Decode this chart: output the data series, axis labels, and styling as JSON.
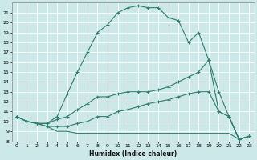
{
  "xlabel": "Humidex (Indice chaleur)",
  "bg_color": "#cce8e8",
  "grid_color": "#b8d8d8",
  "line_color": "#2e7d6e",
  "xlim": [
    -0.5,
    23.5
  ],
  "ylim": [
    8,
    22
  ],
  "xticks": [
    0,
    1,
    2,
    3,
    4,
    5,
    6,
    7,
    8,
    9,
    10,
    11,
    12,
    13,
    14,
    15,
    16,
    17,
    18,
    19,
    20,
    21,
    22,
    23
  ],
  "yticks": [
    8,
    9,
    10,
    11,
    12,
    13,
    14,
    15,
    16,
    17,
    18,
    19,
    20,
    21
  ],
  "curve1_x": [
    0,
    1,
    2,
    3,
    4,
    5,
    6,
    7,
    8,
    9,
    10,
    11,
    12,
    13,
    14,
    15,
    16,
    17,
    18,
    19,
    20,
    21,
    22,
    23
  ],
  "curve1_y": [
    10.5,
    10.0,
    9.8,
    9.8,
    10.5,
    12.8,
    15.0,
    17.0,
    19.0,
    19.8,
    21.0,
    21.5,
    21.7,
    21.5,
    21.5,
    20.5,
    20.2,
    18.0,
    19.0,
    16.2,
    13.0,
    10.5,
    8.2,
    8.5
  ],
  "curve2_x": [
    0,
    1,
    2,
    3,
    4,
    5,
    6,
    7,
    8,
    9,
    10,
    11,
    12,
    13,
    14,
    15,
    16,
    17,
    18,
    19,
    20,
    21,
    22,
    23
  ],
  "curve2_y": [
    10.5,
    10.0,
    9.8,
    9.8,
    10.2,
    10.5,
    11.2,
    11.8,
    12.5,
    12.5,
    12.8,
    13.0,
    13.0,
    13.0,
    13.2,
    13.5,
    14.0,
    14.5,
    15.0,
    16.2,
    11.0,
    10.5,
    8.2,
    8.5
  ],
  "curve3_x": [
    0,
    1,
    2,
    3,
    4,
    5,
    6,
    7,
    8,
    9,
    10,
    11,
    12,
    13,
    14,
    15,
    16,
    17,
    18,
    19,
    20,
    21,
    22,
    23
  ],
  "curve3_y": [
    10.5,
    10.0,
    9.8,
    9.5,
    9.5,
    9.5,
    9.8,
    10.0,
    10.5,
    10.5,
    11.0,
    11.2,
    11.5,
    11.8,
    12.0,
    12.2,
    12.5,
    12.8,
    13.0,
    13.0,
    11.0,
    10.5,
    8.2,
    8.5
  ],
  "curve4_x": [
    0,
    1,
    2,
    3,
    4,
    5,
    6,
    7,
    8,
    9,
    10,
    11,
    12,
    13,
    14,
    15,
    16,
    17,
    18,
    19,
    20,
    21,
    22,
    23
  ],
  "curve4_y": [
    10.5,
    10.0,
    9.8,
    9.5,
    9.0,
    9.0,
    8.8,
    8.8,
    8.8,
    8.8,
    8.8,
    8.8,
    8.8,
    8.8,
    8.8,
    8.8,
    8.8,
    8.8,
    8.8,
    8.8,
    8.8,
    8.8,
    8.2,
    8.5
  ]
}
